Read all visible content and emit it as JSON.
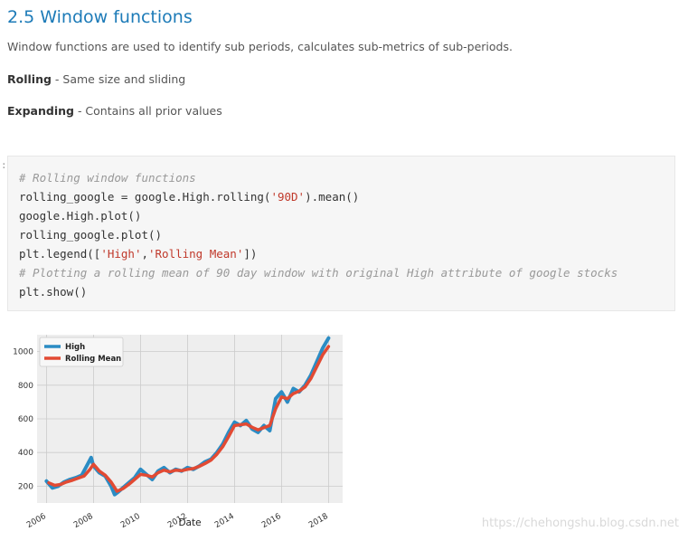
{
  "section": {
    "heading": "2.5 Window functions",
    "intro": "Window functions are used to identify sub periods, calculates sub-metrics of sub-periods.",
    "rolling_term": "Rolling",
    "rolling_desc": " - Same size and sliding",
    "expanding_term": "Expanding",
    "expanding_desc": " - Contains all prior values"
  },
  "code_cell": {
    "marker": ":",
    "lines": {
      "l1": "# Rolling window functions",
      "l2_a": "rolling_google = google.High.rolling(",
      "l2_str": "'90D'",
      "l2_b": ").mean()",
      "l3": "google.High.plot()",
      "l4": "rolling_google.plot()",
      "l5_a": "plt.legend([",
      "l5_s1": "'High'",
      "l5_comma": ",",
      "l5_s2": "'Rolling Mean'",
      "l5_b": "])",
      "l6": "# Plotting a rolling mean of 90 day window with original High attribute of google stocks",
      "l7": "plt.show()"
    }
  },
  "watermark": "https://chehongshu.blog.csdn.net",
  "chart_data": {
    "type": "line",
    "xlabel": "Date",
    "ylabel": "",
    "x_ticks": [
      "2006",
      "2008",
      "2010",
      "2012",
      "2014",
      "2016",
      "2018"
    ],
    "y_ticks": [
      200,
      400,
      600,
      800,
      1000
    ],
    "xlim": [
      2005.6,
      2018.6
    ],
    "ylim": [
      100,
      1100
    ],
    "grid": true,
    "legend_position": "top-left",
    "colors": {
      "High": "#2b8cc4",
      "Rolling Mean": "#e24a33",
      "plot_bg": "#eeeeee",
      "grid": "#cbcbcb"
    },
    "series": [
      {
        "name": "High",
        "x": [
          2006.0,
          2006.25,
          2006.5,
          2006.75,
          2007.0,
          2007.25,
          2007.5,
          2007.75,
          2007.9,
          2008.0,
          2008.25,
          2008.5,
          2008.75,
          2008.9,
          2009.0,
          2009.25,
          2009.5,
          2009.75,
          2010.0,
          2010.25,
          2010.5,
          2010.75,
          2011.0,
          2011.25,
          2011.5,
          2011.75,
          2012.0,
          2012.25,
          2012.5,
          2012.75,
          2013.0,
          2013.25,
          2013.5,
          2013.75,
          2014.0,
          2014.25,
          2014.5,
          2014.75,
          2015.0,
          2015.25,
          2015.5,
          2015.75,
          2016.0,
          2016.25,
          2016.5,
          2016.75,
          2017.0,
          2017.25,
          2017.5,
          2017.75,
          2018.0
        ],
        "y": [
          230,
          190,
          200,
          225,
          240,
          250,
          265,
          330,
          370,
          320,
          280,
          260,
          200,
          150,
          160,
          190,
          220,
          250,
          300,
          270,
          240,
          290,
          310,
          280,
          300,
          290,
          310,
          300,
          320,
          345,
          360,
          400,
          450,
          520,
          580,
          560,
          590,
          540,
          520,
          560,
          530,
          720,
          760,
          700,
          780,
          760,
          800,
          860,
          940,
          1020,
          1080
        ]
      },
      {
        "name": "Rolling Mean",
        "x": [
          2006.1,
          2006.35,
          2006.6,
          2006.85,
          2007.1,
          2007.35,
          2007.6,
          2007.85,
          2008.0,
          2008.25,
          2008.5,
          2008.75,
          2009.0,
          2009.25,
          2009.5,
          2009.75,
          2010.0,
          2010.25,
          2010.5,
          2010.75,
          2011.0,
          2011.25,
          2011.5,
          2011.75,
          2012.0,
          2012.25,
          2012.5,
          2012.75,
          2013.0,
          2013.25,
          2013.5,
          2013.75,
          2014.0,
          2014.25,
          2014.5,
          2014.75,
          2015.0,
          2015.25,
          2015.5,
          2015.75,
          2016.0,
          2016.25,
          2016.5,
          2016.75,
          2017.0,
          2017.25,
          2017.5,
          2017.75,
          2018.0
        ],
        "y": [
          220,
          205,
          210,
          225,
          235,
          248,
          260,
          300,
          330,
          290,
          265,
          225,
          170,
          185,
          210,
          240,
          270,
          265,
          255,
          280,
          295,
          285,
          295,
          292,
          300,
          305,
          318,
          335,
          355,
          390,
          435,
          495,
          560,
          565,
          570,
          550,
          535,
          548,
          560,
          660,
          730,
          720,
          750,
          765,
          790,
          840,
          910,
          980,
          1030
        ]
      }
    ]
  }
}
